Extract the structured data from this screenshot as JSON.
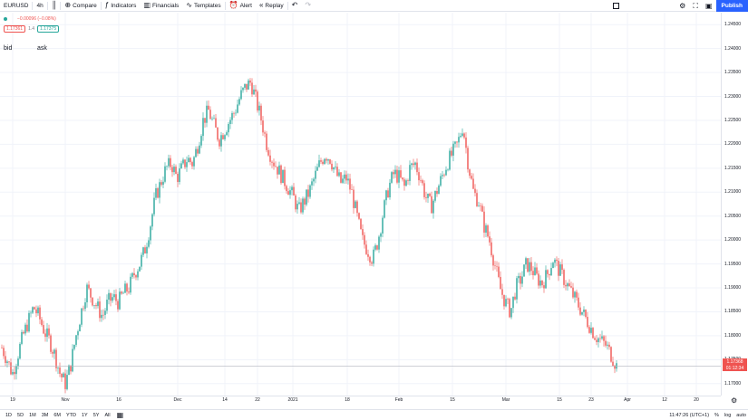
{
  "toolbar": {
    "symbol": "EURUSD",
    "interval": "4h",
    "compare_label": "Compare",
    "indicators_label": "Indicators",
    "financials_label": "Financials",
    "templates_label": "Templates",
    "alert_label": "Alert",
    "replay_label": "Replay",
    "publish_label": "Publish"
  },
  "legend": {
    "change": "−0.00096 (−0.08%)",
    "bid_price": "1.17361",
    "spread": "1.4",
    "ask_price": "1.17375",
    "bid_label": "bid",
    "ask_label": "ask"
  },
  "price_axis": {
    "ticks": [
      "1.24500",
      "1.24000",
      "1.23500",
      "1.23000",
      "1.22500",
      "1.22000",
      "1.21500",
      "1.21000",
      "1.20500",
      "1.20000",
      "1.19500",
      "1.19000",
      "1.18500",
      "1.18000",
      "1.17500",
      "1.17000"
    ],
    "last_price": "1.17368",
    "countdown": "01:12:34"
  },
  "time_axis": {
    "ticks": [
      "19",
      "Nov",
      "16",
      "Dec",
      "14",
      "22",
      "2021",
      "18",
      "Feb",
      "15",
      "Mar",
      "15",
      "23",
      "Apr",
      "12",
      "20"
    ]
  },
  "bottom": {
    "ranges": [
      "1D",
      "5D",
      "1M",
      "3M",
      "6M",
      "YTD",
      "1Y",
      "5Y",
      "All"
    ],
    "clock": "11:47:26 (UTC+1)",
    "percent_label": "%",
    "log_label": "log",
    "auto_label": "auto"
  },
  "colors": {
    "up": "#26a69a",
    "down": "#ef5350",
    "accent": "#2962ff"
  },
  "chart_data": {
    "type": "candlestick",
    "symbol": "EURUSD",
    "interval": "4h",
    "ylim": [
      1.1675,
      1.2475
    ],
    "x_labels": [
      "19",
      "Nov",
      "16",
      "Dec",
      "14",
      "22",
      "2021",
      "18",
      "Feb",
      "15",
      "Mar",
      "15",
      "23",
      "Apr",
      "12",
      "20"
    ],
    "close_path": [
      1.1775,
      1.175,
      1.172,
      1.176,
      1.18,
      1.183,
      1.186,
      1.184,
      1.181,
      1.179,
      1.176,
      1.172,
      1.17,
      1.174,
      1.18,
      1.185,
      1.19,
      1.188,
      1.186,
      1.184,
      1.187,
      1.188,
      1.187,
      1.189,
      1.19,
      1.193,
      1.195,
      1.198,
      1.203,
      1.209,
      1.212,
      1.215,
      1.216,
      1.213,
      1.215,
      1.217,
      1.216,
      1.22,
      1.225,
      1.227,
      1.224,
      1.221,
      1.223,
      1.225,
      1.227,
      1.23,
      1.232,
      1.233,
      1.229,
      1.225,
      1.22,
      1.217,
      1.215,
      1.213,
      1.211,
      1.209,
      1.206,
      1.208,
      1.21,
      1.213,
      1.216,
      1.218,
      1.217,
      1.214,
      1.212,
      1.213,
      1.21,
      1.205,
      1.2,
      1.198,
      1.196,
      1.2,
      1.206,
      1.211,
      1.214,
      1.213,
      1.211,
      1.215,
      1.216,
      1.213,
      1.209,
      1.207,
      1.21,
      1.213,
      1.216,
      1.218,
      1.22,
      1.224,
      1.216,
      1.21,
      1.208,
      1.203,
      1.2,
      1.195,
      1.19,
      1.187,
      1.185,
      1.19,
      1.192,
      1.195,
      1.194,
      1.192,
      1.191,
      1.193,
      1.196,
      1.194,
      1.192,
      1.19,
      1.188,
      1.186,
      1.184,
      1.182,
      1.18,
      1.179,
      1.178,
      1.176,
      1.1737
    ]
  }
}
